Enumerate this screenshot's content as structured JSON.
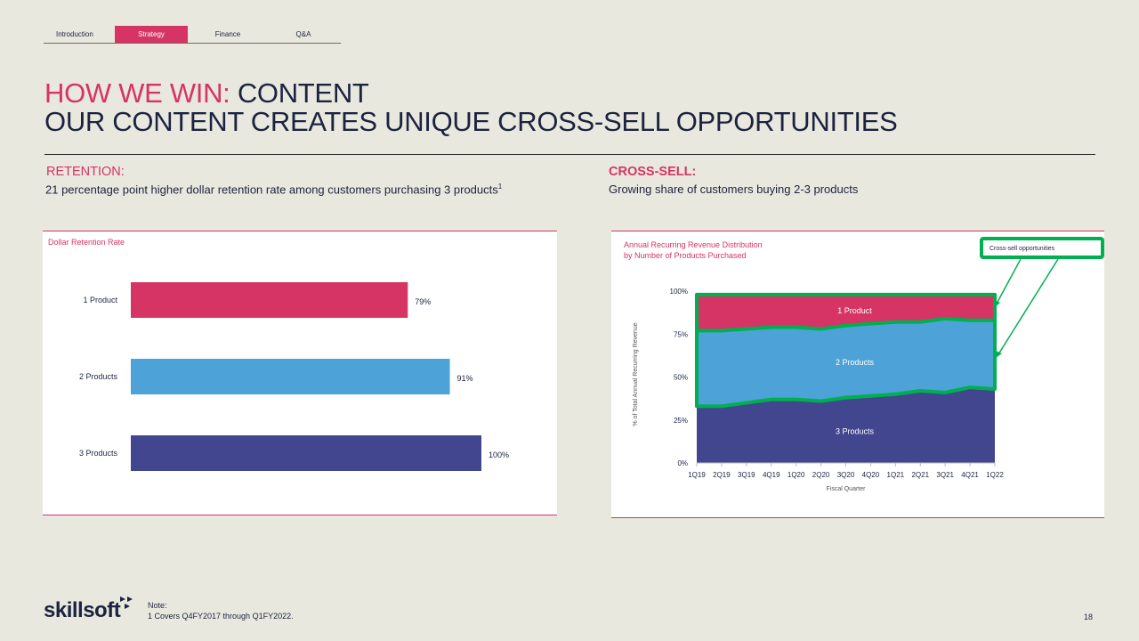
{
  "nav": {
    "tabs": [
      {
        "label": "Introduction",
        "active": false
      },
      {
        "label": "Strategy",
        "active": true
      },
      {
        "label": "Finance",
        "active": false
      },
      {
        "label": "Q&A",
        "active": false
      }
    ]
  },
  "title": {
    "line1_accent": "HOW WE WIN:",
    "line1_rest": " CONTENT",
    "line2": "OUR CONTENT CREATES UNIQUE CROSS-SELL OPPORTUNITIES"
  },
  "retention": {
    "heading": "RETENTION:",
    "subtitle": "21 percentage point higher dollar retention rate among customers purchasing 3 products",
    "footnote_marker": "1"
  },
  "cross_sell": {
    "heading": "CROSS-SELL:",
    "subtitle": "Growing share of customers buying 2-3 products"
  },
  "colors": {
    "accent": "#d63464",
    "one_product": "#d63464",
    "two_products": "#4da3d8",
    "three_products": "#42468f",
    "highlight": "#00b050",
    "text": "#1c2340"
  },
  "chart_data": [
    {
      "type": "bar",
      "orientation": "horizontal",
      "title": "Dollar Retention Rate",
      "categories": [
        "1 Product",
        "2 Products",
        "3 Products"
      ],
      "values": [
        79,
        91,
        100
      ],
      "value_labels": [
        "79%",
        "91%",
        "100%"
      ],
      "xlim": [
        0,
        100
      ],
      "colors": [
        "#d63464",
        "#4da3d8",
        "#42468f"
      ]
    },
    {
      "type": "area",
      "stacked": true,
      "title": "Annual Recurring Revenue Distribution",
      "subtitle": "by Number of Products Purchased",
      "xlabel": "Fiscal Quarter",
      "ylabel": "% of Total Annual Recurring Revenue",
      "x": [
        "1Q19",
        "2Q19",
        "3Q19",
        "4Q19",
        "1Q20",
        "2Q20",
        "3Q20",
        "4Q20",
        "1Q21",
        "2Q21",
        "3Q21",
        "4Q21",
        "1Q22"
      ],
      "yticks": [
        "0%",
        "25%",
        "50%",
        "75%",
        "100%"
      ],
      "ylim": [
        0,
        100
      ],
      "series": [
        {
          "name": "3 Products",
          "values": [
            33,
            33,
            35,
            37,
            37,
            36,
            38,
            39,
            40,
            42,
            41,
            44,
            43
          ]
        },
        {
          "name": "2 Products",
          "values": [
            44,
            44,
            43,
            42,
            42,
            42,
            42,
            42,
            42,
            40,
            43,
            39,
            40
          ]
        },
        {
          "name": "1 Product",
          "values": [
            21,
            21,
            20,
            19,
            19,
            20,
            18,
            17,
            16,
            16,
            14,
            15,
            15
          ]
        }
      ],
      "callout": "Cross-sell opportunities"
    }
  ],
  "footer": {
    "logo": "skillsoft",
    "note_title": "Note:",
    "note_text": "1 Covers Q4FY2017 through Q1FY2022.",
    "page_number": "18"
  }
}
